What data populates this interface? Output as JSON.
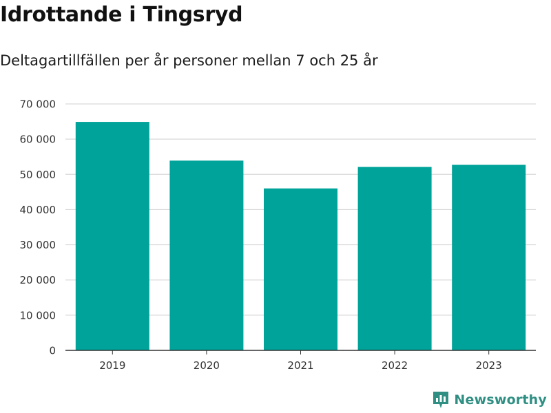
{
  "title": "Idrottande i Tingsryd",
  "subtitle": "Deltagartillfällen per år personer mellan 7 och 25 år",
  "brand": {
    "name": "Newsworthy",
    "icon": "newsworthy-logo-icon",
    "color": "#2f8f83"
  },
  "colors": {
    "bar": "#00a399",
    "grid": "#d9d9d9",
    "axis": "#333333"
  },
  "chart_data": {
    "type": "bar",
    "categories": [
      "2019",
      "2020",
      "2021",
      "2022",
      "2023"
    ],
    "values": [
      64900,
      53900,
      46000,
      52100,
      52700
    ],
    "ylim": [
      0,
      70000
    ],
    "yticks": [
      0,
      10000,
      20000,
      30000,
      40000,
      50000,
      60000,
      70000
    ],
    "ytick_labels": [
      "0",
      "10 000",
      "20 000",
      "30 000",
      "40 000",
      "50 000",
      "60 000",
      "70 000"
    ],
    "xlabel": "",
    "ylabel": "",
    "grid": true,
    "legend": false
  }
}
